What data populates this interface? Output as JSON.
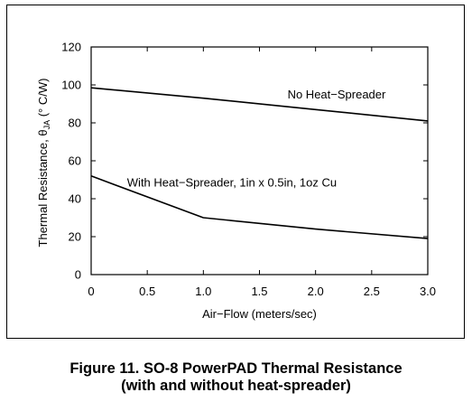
{
  "caption": {
    "line1": "Figure 11. SO-8 PowerPAD Thermal Resistance",
    "line2": "(with and without heat-spreader)"
  },
  "chart_data": {
    "type": "line",
    "xlabel": "Air−Flow (meters/sec)",
    "ylabel_prefix": "Thermal Resistance, θ",
    "ylabel_sub": "JA",
    "ylabel_suffix": " (° C/W)",
    "xlim": [
      0,
      3.0
    ],
    "ylim": [
      0,
      120
    ],
    "x_ticks": [
      0,
      0.5,
      1.0,
      1.5,
      2.0,
      2.5,
      3.0
    ],
    "x_tick_labels": [
      "0",
      "0.5",
      "1.0",
      "1.5",
      "2.0",
      "2.5",
      "3.0"
    ],
    "y_ticks": [
      0,
      20,
      40,
      60,
      80,
      100,
      120
    ],
    "y_tick_labels": [
      "0",
      "20",
      "40",
      "60",
      "80",
      "100",
      "120"
    ],
    "grid": false,
    "line_color": "#000000",
    "series": [
      {
        "name": "No Heat−Spreader",
        "x": [
          0,
          1.0,
          2.0,
          3.0
        ],
        "y": [
          98.5,
          93,
          87,
          81
        ]
      },
      {
        "name": "With Heat−Spreader, 1in x 0.5in, 1oz Cu",
        "x": [
          0,
          1.0,
          2.0,
          3.0
        ],
        "y": [
          52,
          30,
          24,
          19
        ]
      }
    ],
    "annotations": [
      {
        "text": "No Heat−Spreader",
        "x": 1.75,
        "y": 95
      },
      {
        "text": "With Heat−Spreader, 1in x 0.5in, 1oz Cu",
        "x": 0.32,
        "y": 48.5
      }
    ]
  }
}
